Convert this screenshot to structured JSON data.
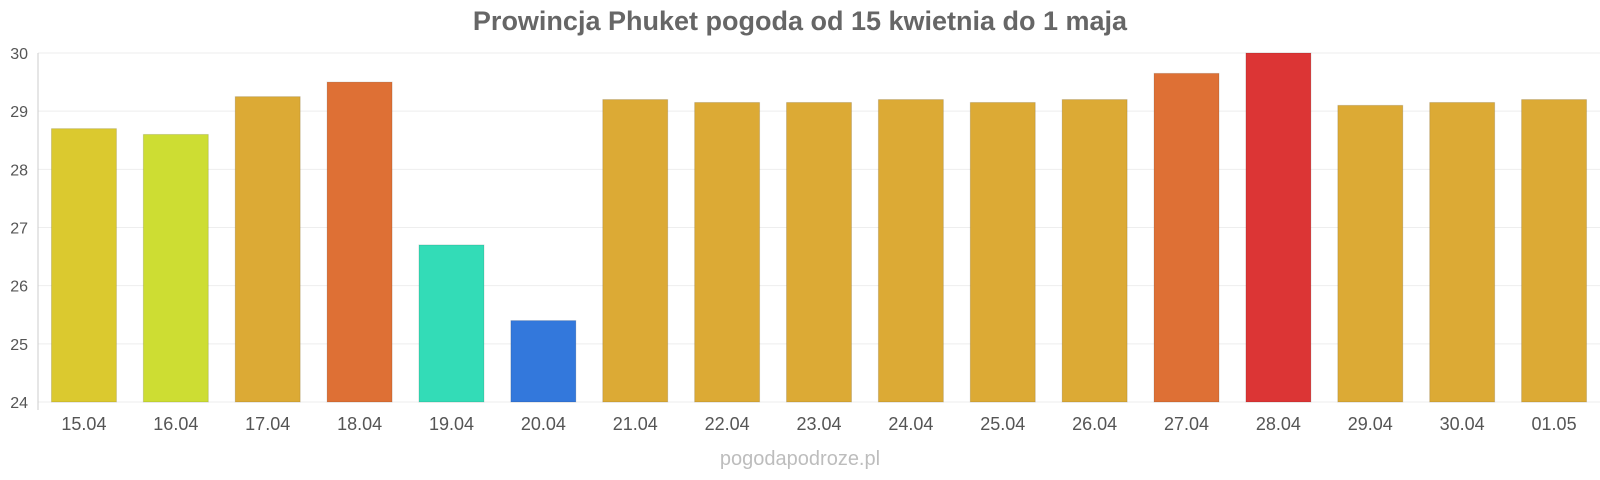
{
  "chart_data": {
    "type": "bar",
    "title": "Prowincja Phuket pogoda od 15 kwietnia do 1 maja",
    "xlabel": "",
    "ylabel": "",
    "ylim": [
      24,
      30
    ],
    "yticks": [
      24,
      25,
      26,
      27,
      28,
      29,
      30
    ],
    "grid": true,
    "legend": "none",
    "categories": [
      "15.04",
      "16.04",
      "17.04",
      "18.04",
      "19.04",
      "20.04",
      "21.04",
      "22.04",
      "23.04",
      "24.04",
      "25.04",
      "26.04",
      "27.04",
      "28.04",
      "29.04",
      "30.04",
      "01.05"
    ],
    "values": [
      28.7,
      28.6,
      29.25,
      29.5,
      26.7,
      25.4,
      29.2,
      29.15,
      29.15,
      29.2,
      29.15,
      29.2,
      29.65,
      30.0,
      29.1,
      29.15,
      29.2
    ],
    "colors": [
      "#dbc92f",
      "#cddd33",
      "#dcaa35",
      "#de7035",
      "#33dcb7",
      "#3378dc",
      "#dcaa35",
      "#dcaa35",
      "#dcaa35",
      "#dcaa35",
      "#dcaa35",
      "#dcaa35",
      "#de7035",
      "#dc3535",
      "#dcaa35",
      "#dcaa35",
      "#dcaa35"
    ]
  },
  "watermark": "pogodapodroze.pl"
}
